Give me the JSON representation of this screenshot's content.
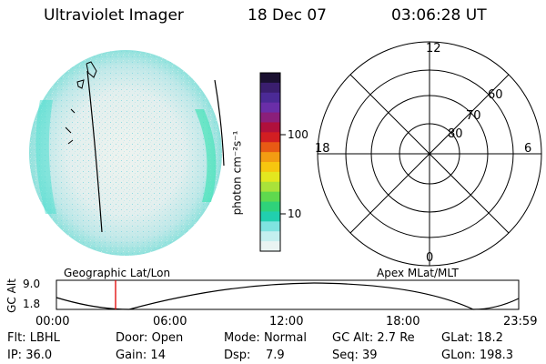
{
  "header": {
    "instrument": "Ultraviolet Imager",
    "date": "18 Dec 07",
    "time": "03:06:28 UT"
  },
  "colorbar": {
    "unit_label": "photon cm⁻²s⁻¹",
    "ticks": [
      "100",
      "10"
    ],
    "colors": [
      "#1a1030",
      "#3a1e6e",
      "#4b2a96",
      "#6a2ea8",
      "#8b1f7a",
      "#b0103c",
      "#d21e22",
      "#e85a14",
      "#f39c12",
      "#f7c60f",
      "#e3e71f",
      "#a9e23a",
      "#5fd94e",
      "#2fd27a",
      "#21cfae",
      "#7fe3e0",
      "#c4efef",
      "#e9f4f2"
    ]
  },
  "polar_plot": {
    "mlt_labels": {
      "top": "12",
      "left": "18",
      "right": "6",
      "bottom": "0"
    },
    "lat_labels": [
      "60",
      "70",
      "80"
    ]
  },
  "timeline": {
    "left_title": "Geographic Lat/Lon",
    "right_title": "Apex MLat/MLT",
    "ylabel": "GC Alt",
    "yticks": [
      "9.0",
      "1.8"
    ],
    "xticks": [
      "00:00",
      "06:00",
      "12:00",
      "18:00",
      "23:59"
    ],
    "marker_time": "03:06:28"
  },
  "status": {
    "row1": [
      {
        "label": "Flt:",
        "value": "LBHL"
      },
      {
        "label": "Door:",
        "value": "Open"
      },
      {
        "label": "Mode:",
        "value": "Normal"
      },
      {
        "label": "GC Alt:",
        "value": "2.7 Re"
      },
      {
        "label": "GLat:",
        "value": "18.2"
      }
    ],
    "row2": [
      {
        "label": "IP:",
        "value": "36.0"
      },
      {
        "label": "Gain:",
        "value": "14"
      },
      {
        "label": "Dsp:",
        "value": "7.9"
      },
      {
        "label": "Seq:",
        "value": "39"
      },
      {
        "label": "GLon:",
        "value": "198.3"
      }
    ]
  }
}
